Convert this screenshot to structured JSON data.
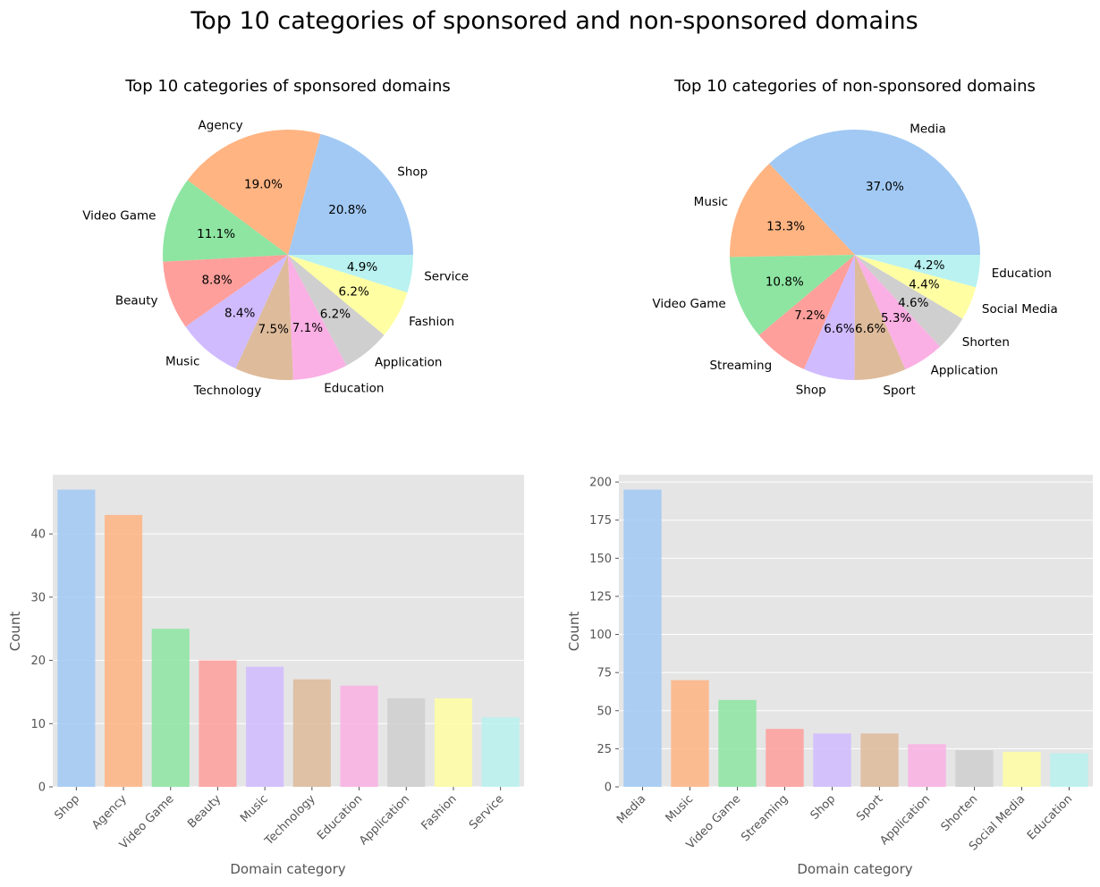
{
  "figure": {
    "title": "Top 10 categories of sponsored and non-sponsored domains"
  },
  "palette": [
    "#a1c9f4",
    "#ffb482",
    "#8de5a1",
    "#ff9f9b",
    "#d0bbff",
    "#debb9b",
    "#fab0e4",
    "#cfcfcf",
    "#fffea3",
    "#b9f2f0"
  ],
  "style": {
    "axes_background": "#e5e5e5",
    "grid_color": "#ffffff",
    "tick_color": "#555555"
  },
  "chart_data": [
    {
      "type": "pie",
      "title": "Top 10 categories of sponsored domains",
      "labels": [
        "Shop",
        "Agency",
        "Video Game",
        "Beauty",
        "Music",
        "Technology",
        "Education",
        "Application",
        "Fashion",
        "Service"
      ],
      "values": [
        47,
        43,
        25,
        20,
        19,
        17,
        16,
        14,
        14,
        11
      ],
      "percent_labels": [
        "20.8%",
        "19.0%",
        "11.1%",
        "8.8%",
        "8.4%",
        "7.5%",
        "7.1%",
        "6.2%",
        "6.2%",
        "4.9%"
      ]
    },
    {
      "type": "pie",
      "title": "Top 10 categories of non-sponsored domains",
      "labels": [
        "Media",
        "Music",
        "Video Game",
        "Streaming",
        "Shop",
        "Sport",
        "Application",
        "Shorten",
        "Social Media",
        "Education"
      ],
      "values": [
        195,
        70,
        57,
        38,
        35,
        35,
        28,
        24,
        23,
        22
      ],
      "percent_labels": [
        "37.0%",
        "13.3%",
        "10.8%",
        "7.2%",
        "6.6%",
        "6.6%",
        "5.3%",
        "4.6%",
        "4.4%",
        "4.2%"
      ]
    },
    {
      "type": "bar",
      "categories": [
        "Shop",
        "Agency",
        "Video Game",
        "Beauty",
        "Music",
        "Technology",
        "Education",
        "Application",
        "Fashion",
        "Service"
      ],
      "values": [
        47,
        43,
        25,
        20,
        19,
        17,
        16,
        14,
        14,
        11
      ],
      "xlabel": "Domain category",
      "ylabel": "Count",
      "ylim": [
        0,
        49.35
      ],
      "yticks": [
        0,
        10,
        20,
        30,
        40
      ],
      "grid": true
    },
    {
      "type": "bar",
      "categories": [
        "Media",
        "Music",
        "Video Game",
        "Streaming",
        "Shop",
        "Sport",
        "Application",
        "Shorten",
        "Social Media",
        "Education"
      ],
      "values": [
        195,
        70,
        57,
        38,
        35,
        35,
        28,
        24,
        23,
        22
      ],
      "xlabel": "Domain category",
      "ylabel": "Count",
      "ylim": [
        0,
        204.75
      ],
      "yticks": [
        0,
        25,
        50,
        75,
        100,
        125,
        150,
        175,
        200
      ],
      "grid": true
    }
  ]
}
